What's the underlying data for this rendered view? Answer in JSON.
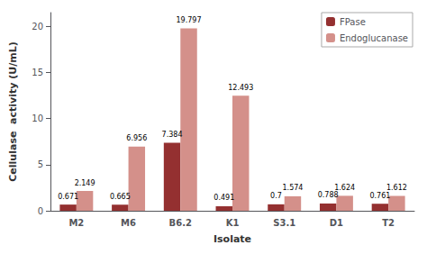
{
  "chart_data": {
    "type": "bar",
    "categories": [
      "M2",
      "M6",
      "B6.2",
      "K1",
      "S3.1",
      "D1",
      "T2"
    ],
    "series": [
      {
        "name": "FPase",
        "color": "#943030",
        "values": [
          0.671,
          0.665,
          7.384,
          0.491,
          0.7,
          0.788,
          0.761
        ]
      },
      {
        "name": "Endoglucanase",
        "color": "#D4908A",
        "values": [
          2.149,
          6.956,
          19.797,
          12.493,
          1.574,
          1.624,
          1.612
        ]
      }
    ],
    "xlabel": "Isolate",
    "ylabel": "Cellulase  activity (U/mL)",
    "ylim": [
      0,
      21.5
    ],
    "yticks": [
      0,
      5,
      10,
      15,
      20
    ],
    "grid": false,
    "legend": "upper right",
    "data_labels": true
  }
}
